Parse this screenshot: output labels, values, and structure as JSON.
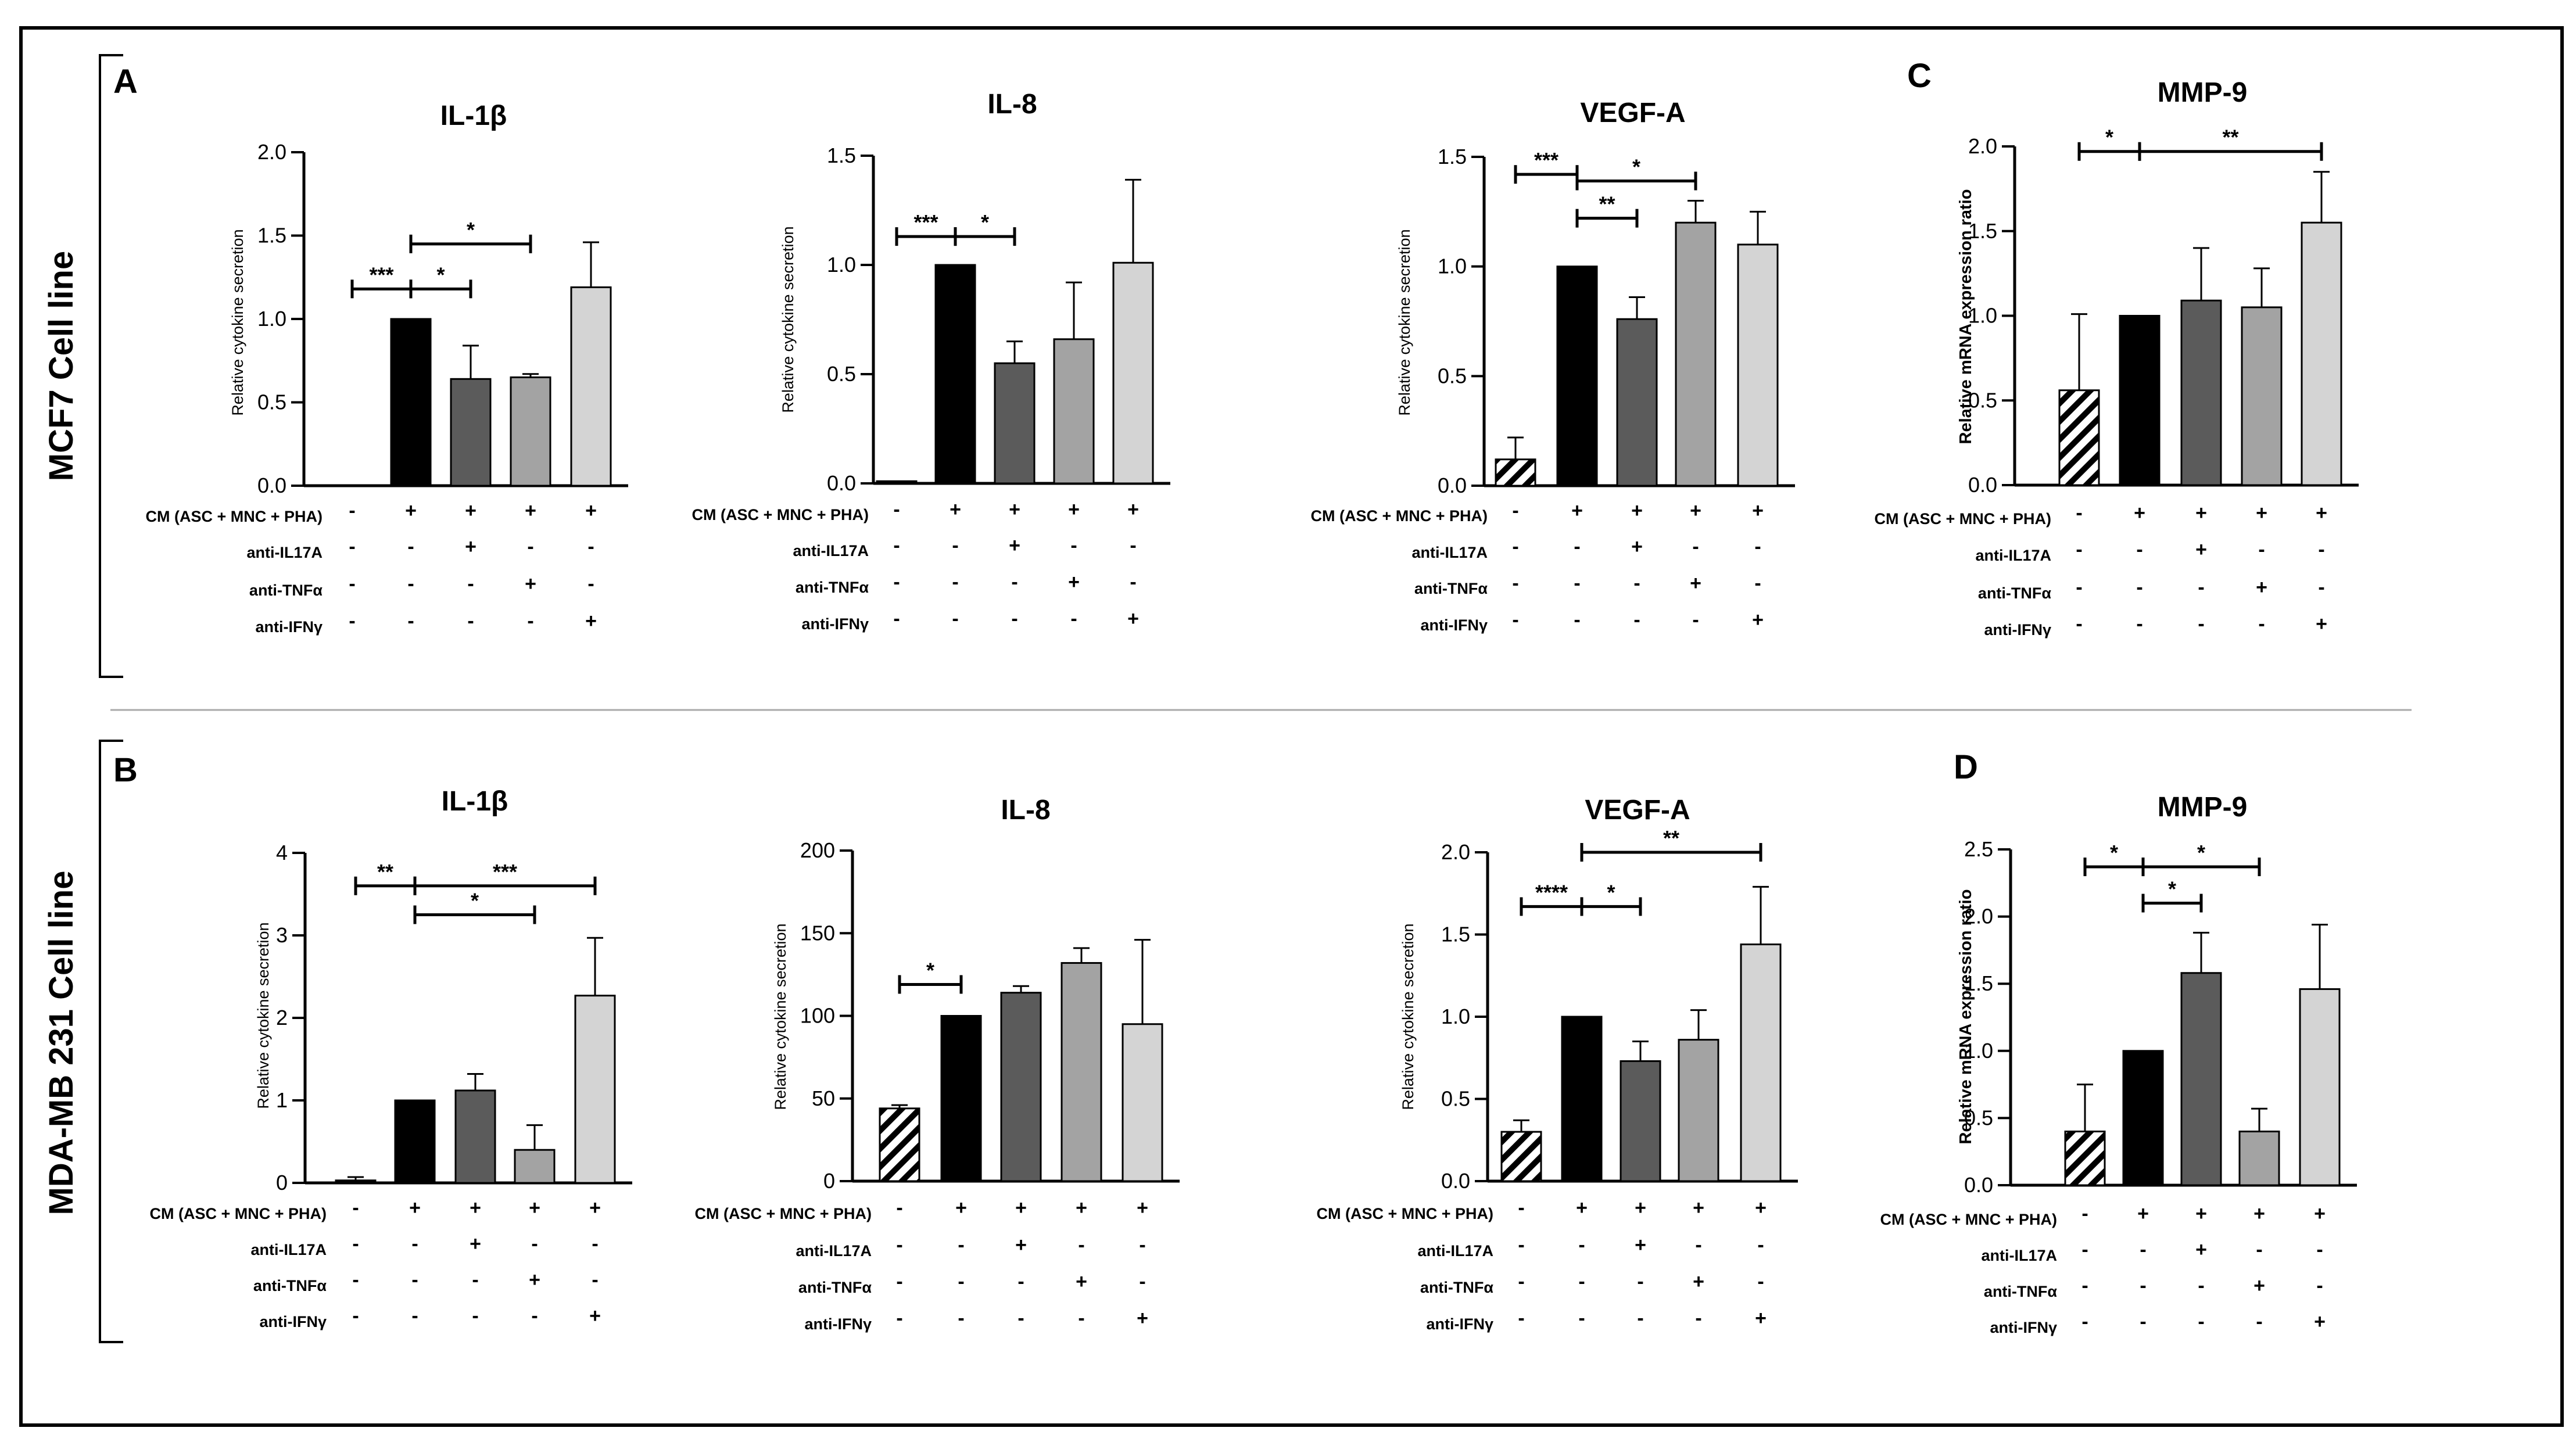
{
  "figure": {
    "row_labels": [
      "MCF7 Cell line",
      "MDA-MB 231 Cell line"
    ],
    "panel_labels": [
      "A",
      "B",
      "C",
      "D"
    ]
  },
  "colors": {
    "bar_black": "#000000",
    "bar_dark": "#5b5b5b",
    "bar_mid": "#a3a3a3",
    "bar_light": "#d4d4d4",
    "frame": "#000000"
  },
  "chart_data": [
    {
      "id": "A1",
      "type": "bar",
      "panel": "A",
      "title": "IL-1β",
      "ylabel": "Relative cytokine secretion",
      "ylim": [
        0,
        2.0
      ],
      "yticks": [
        "0.0",
        "0.5",
        "1.0",
        "1.5",
        "2.0"
      ],
      "ytick_values": [
        0,
        0.5,
        1.0,
        1.5,
        2.0
      ],
      "values": [
        0,
        1.0,
        0.64,
        0.65,
        1.19
      ],
      "errors": [
        0,
        0,
        0.2,
        0.02,
        0.27
      ],
      "fills": [
        "hatch",
        "black",
        "dark",
        "mid",
        "light"
      ],
      "sig": [
        {
          "from": 0,
          "to": 1,
          "label": "***",
          "y": 1.18
        },
        {
          "from": 1,
          "to": 2,
          "label": "*",
          "y": 1.18
        },
        {
          "from": 1,
          "to": 3,
          "label": "*",
          "y": 1.45
        }
      ],
      "conditions": [
        {
          "label": "CM (ASC + MNC + PHA)",
          "signs": [
            "-",
            "+",
            "+",
            "+",
            "+"
          ]
        },
        {
          "label": "anti-IL17A",
          "signs": [
            "-",
            "-",
            "+",
            "-",
            "-"
          ]
        },
        {
          "label": "anti-TNFα",
          "signs": [
            "-",
            "-",
            "-",
            "+",
            "-"
          ]
        },
        {
          "label": "anti-IFNγ",
          "signs": [
            "-",
            "-",
            "-",
            "-",
            "+"
          ]
        }
      ]
    },
    {
      "id": "A2",
      "type": "bar",
      "panel": "A",
      "title": "IL-8",
      "ylabel": "Relative cytokine secretion",
      "ylim": [
        0,
        1.5
      ],
      "yticks": [
        "0.0",
        "0.5",
        "1.0",
        "1.5"
      ],
      "ytick_values": [
        0,
        0.5,
        1.0,
        1.5
      ],
      "values": [
        0.01,
        1.0,
        0.55,
        0.66,
        1.01
      ],
      "errors": [
        0,
        0,
        0.1,
        0.26,
        0.38
      ],
      "fills": [
        "black",
        "black",
        "dark",
        "mid",
        "light"
      ],
      "sig": [
        {
          "from": 0,
          "to": 1,
          "label": "***",
          "y": 1.13
        },
        {
          "from": 1,
          "to": 2,
          "label": "*",
          "y": 1.13
        }
      ],
      "conditions": [
        {
          "label": "CM (ASC + MNC + PHA)",
          "signs": [
            "-",
            "+",
            "+",
            "+",
            "+"
          ]
        },
        {
          "label": "anti-IL17A",
          "signs": [
            "-",
            "-",
            "+",
            "-",
            "-"
          ]
        },
        {
          "label": "anti-TNFα",
          "signs": [
            "-",
            "-",
            "-",
            "+",
            "-"
          ]
        },
        {
          "label": "anti-IFNγ",
          "signs": [
            "-",
            "-",
            "-",
            "-",
            "+"
          ]
        }
      ]
    },
    {
      "id": "A3",
      "type": "bar",
      "panel": "A",
      "title": "VEGF-A",
      "ylabel": "Relative cytokine secretion",
      "ylim": [
        0,
        1.5
      ],
      "yticks": [
        "0.0",
        "0.5",
        "1.0",
        "1.5"
      ],
      "ytick_values": [
        0,
        0.5,
        1.0,
        1.5
      ],
      "values": [
        0.12,
        1.0,
        0.76,
        1.2,
        1.1
      ],
      "errors": [
        0.1,
        0,
        0.1,
        0.1,
        0.15
      ],
      "fills": [
        "hatch",
        "black",
        "dark",
        "mid",
        "light"
      ],
      "sig": [
        {
          "from": 0,
          "to": 1,
          "label": "***",
          "y": 1.42
        },
        {
          "from": 1,
          "to": 3,
          "label": "*",
          "y": 1.39
        },
        {
          "from": 1,
          "to": 2,
          "label": "**",
          "y": 1.22
        }
      ],
      "conditions": [
        {
          "label": "CM (ASC + MNC + PHA)",
          "signs": [
            "-",
            "+",
            "+",
            "+",
            "+"
          ]
        },
        {
          "label": "anti-IL17A",
          "signs": [
            "-",
            "-",
            "+",
            "-",
            "-"
          ]
        },
        {
          "label": "anti-TNFα",
          "signs": [
            "-",
            "-",
            "-",
            "+",
            "-"
          ]
        },
        {
          "label": "anti-IFNγ",
          "signs": [
            "-",
            "-",
            "-",
            "-",
            "+"
          ]
        }
      ]
    },
    {
      "id": "C",
      "type": "bar",
      "panel": "C",
      "title": "MMP-9",
      "ylabel": "Relative mRNA expression ratio",
      "ylim": [
        0,
        2.0
      ],
      "yticks": [
        "0.0",
        "0.5",
        "1.0",
        "1.5",
        "2.0"
      ],
      "ytick_values": [
        0,
        0.5,
        1.0,
        1.5,
        2.0
      ],
      "values": [
        0.56,
        1.0,
        1.09,
        1.05,
        1.55
      ],
      "errors": [
        0.45,
        0,
        0.31,
        0.23,
        0.3
      ],
      "fills": [
        "hatch",
        "black",
        "dark",
        "mid",
        "light"
      ],
      "sig": [
        {
          "from": 0,
          "to": 1,
          "label": "*",
          "y": 1.97
        },
        {
          "from": 1,
          "to": 4,
          "label": "**",
          "y": 1.97
        }
      ],
      "conditions": [
        {
          "label": "CM (ASC + MNC + PHA)",
          "signs": [
            "-",
            "+",
            "+",
            "+",
            "+"
          ]
        },
        {
          "label": "anti-IL17A",
          "signs": [
            "-",
            "-",
            "+",
            "-",
            "-"
          ]
        },
        {
          "label": "anti-TNFα",
          "signs": [
            "-",
            "-",
            "-",
            "+",
            "-"
          ]
        },
        {
          "label": "anti-IFNγ",
          "signs": [
            "-",
            "-",
            "-",
            "-",
            "+"
          ]
        }
      ]
    },
    {
      "id": "B1",
      "type": "bar",
      "panel": "B",
      "title": "IL-1β",
      "ylabel": "Relative cytokine secretion",
      "ylim": [
        0,
        4
      ],
      "yticks": [
        "0",
        "1",
        "2",
        "3",
        "4"
      ],
      "ytick_values": [
        0,
        1,
        2,
        3,
        4
      ],
      "values": [
        0.03,
        1.0,
        1.12,
        0.4,
        2.27
      ],
      "errors": [
        0.04,
        0,
        0.2,
        0.3,
        0.7
      ],
      "fills": [
        "black",
        "black",
        "dark",
        "mid",
        "light"
      ],
      "sig": [
        {
          "from": 0,
          "to": 1,
          "label": "**",
          "y": 3.6
        },
        {
          "from": 1,
          "to": 4,
          "label": "***",
          "y": 3.6
        },
        {
          "from": 1,
          "to": 3,
          "label": "*",
          "y": 3.25
        }
      ],
      "conditions": [
        {
          "label": "CM (ASC + MNC + PHA)",
          "signs": [
            "-",
            "+",
            "+",
            "+",
            "+"
          ]
        },
        {
          "label": "anti-IL17A",
          "signs": [
            "-",
            "-",
            "+",
            "-",
            "-"
          ]
        },
        {
          "label": "anti-TNFα",
          "signs": [
            "-",
            "-",
            "-",
            "+",
            "-"
          ]
        },
        {
          "label": "anti-IFNγ",
          "signs": [
            "-",
            "-",
            "-",
            "-",
            "+"
          ]
        }
      ]
    },
    {
      "id": "B2",
      "type": "bar",
      "panel": "B",
      "title": "IL-8",
      "ylabel": "Relative cytokine secretion",
      "ylim": [
        0,
        200
      ],
      "yticks": [
        "0",
        "50",
        "100",
        "150",
        "200"
      ],
      "ytick_values": [
        0,
        50,
        100,
        150,
        200
      ],
      "values": [
        44,
        100,
        114,
        132,
        95
      ],
      "errors": [
        2,
        0,
        4,
        9,
        51
      ],
      "fills": [
        "hatch",
        "black",
        "dark",
        "mid",
        "light"
      ],
      "sig": [
        {
          "from": 0,
          "to": 1,
          "label": "*",
          "y": 119
        }
      ],
      "conditions": [
        {
          "label": "CM (ASC + MNC + PHA)",
          "signs": [
            "-",
            "+",
            "+",
            "+",
            "+"
          ]
        },
        {
          "label": "anti-IL17A",
          "signs": [
            "-",
            "-",
            "+",
            "-",
            "-"
          ]
        },
        {
          "label": "anti-TNFα",
          "signs": [
            "-",
            "-",
            "-",
            "+",
            "-"
          ]
        },
        {
          "label": "anti-IFNγ",
          "signs": [
            "-",
            "-",
            "-",
            "-",
            "+"
          ]
        }
      ]
    },
    {
      "id": "B3",
      "type": "bar",
      "panel": "B",
      "title": "VEGF-A",
      "ylabel": "Relative cytokine secretion",
      "ylim": [
        0,
        2.0
      ],
      "yticks": [
        "0.0",
        "0.5",
        "1.0",
        "1.5",
        "2.0"
      ],
      "ytick_values": [
        0,
        0.5,
        1.0,
        1.5,
        2.0
      ],
      "values": [
        0.3,
        1.0,
        0.73,
        0.86,
        1.44
      ],
      "errors": [
        0.07,
        0,
        0.12,
        0.18,
        0.35
      ],
      "fills": [
        "hatch",
        "black",
        "dark",
        "mid",
        "light"
      ],
      "sig": [
        {
          "from": 1,
          "to": 4,
          "label": "**",
          "y": 2.0
        },
        {
          "from": 0,
          "to": 1,
          "label": "****",
          "y": 1.67
        },
        {
          "from": 1,
          "to": 2,
          "label": "*",
          "y": 1.67
        }
      ],
      "conditions": [
        {
          "label": "CM (ASC + MNC + PHA)",
          "signs": [
            "-",
            "+",
            "+",
            "+",
            "+"
          ]
        },
        {
          "label": "anti-IL17A",
          "signs": [
            "-",
            "-",
            "+",
            "-",
            "-"
          ]
        },
        {
          "label": "anti-TNFα",
          "signs": [
            "-",
            "-",
            "-",
            "+",
            "-"
          ]
        },
        {
          "label": "anti-IFNγ",
          "signs": [
            "-",
            "-",
            "-",
            "-",
            "+"
          ]
        }
      ]
    },
    {
      "id": "D",
      "type": "bar",
      "panel": "D",
      "title": "MMP-9",
      "ylabel": "Relative mRNA expression ratio",
      "ylim": [
        0,
        2.5
      ],
      "yticks": [
        "0.0",
        "0.5",
        "1.0",
        "1.5",
        "2.0",
        "2.5"
      ],
      "ytick_values": [
        0,
        0.5,
        1.0,
        1.5,
        2.0,
        2.5
      ],
      "values": [
        0.4,
        1.0,
        1.58,
        0.4,
        1.46
      ],
      "errors": [
        0.35,
        0,
        0.3,
        0.17,
        0.48
      ],
      "fills": [
        "hatch",
        "black",
        "dark",
        "mid",
        "light"
      ],
      "sig": [
        {
          "from": 0,
          "to": 1,
          "label": "*",
          "y": 2.37
        },
        {
          "from": 1,
          "to": 3,
          "label": "*",
          "y": 2.37
        },
        {
          "from": 1,
          "to": 2,
          "label": "*",
          "y": 2.1
        }
      ],
      "conditions": [
        {
          "label": "CM (ASC + MNC + PHA)",
          "signs": [
            "-",
            "+",
            "+",
            "+",
            "+"
          ]
        },
        {
          "label": "anti-IL17A",
          "signs": [
            "-",
            "-",
            "+",
            "-",
            "-"
          ]
        },
        {
          "label": "anti-TNFα",
          "signs": [
            "-",
            "-",
            "-",
            "+",
            "-"
          ]
        },
        {
          "label": "anti-IFNγ",
          "signs": [
            "-",
            "-",
            "-",
            "-",
            "+"
          ]
        }
      ]
    }
  ]
}
